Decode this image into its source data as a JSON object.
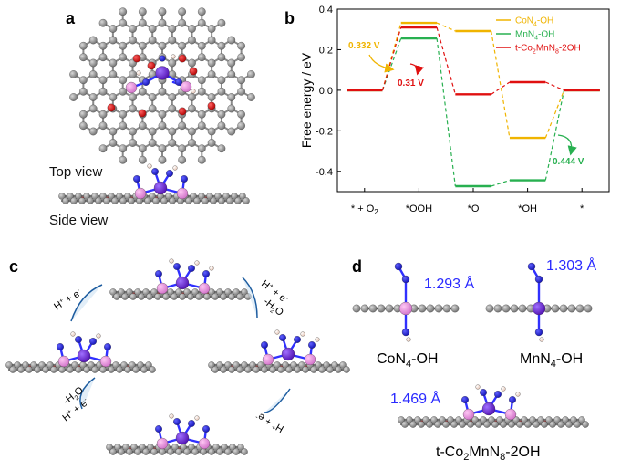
{
  "panels": {
    "a": {
      "label": "a",
      "top_view": "Top view",
      "side_view": "Side view"
    },
    "b": {
      "label": "b",
      "annotations": [
        {
          "text": "0.332 V",
          "color": "#f0b400"
        },
        {
          "text": "0.31 V",
          "color": "#e01010"
        },
        {
          "text": "0.444 V",
          "color": "#28b050"
        }
      ]
    },
    "c": {
      "label": "c",
      "steps": [
        {
          "h": "H",
          "hsup": "+",
          "plus": " + e",
          "esup": "-"
        },
        {
          "h": "H",
          "hsup": "+",
          "plus": " + e",
          "esup": "-",
          "water": "-H",
          "wsub": "2",
          "wo": "O"
        },
        {
          "h": "H",
          "hsup": "+",
          "plus": " + e",
          "esup": "-",
          "water": "-H",
          "wsub": "2",
          "wo": "O"
        },
        {
          "h": "H",
          "hsup": "+",
          "plus": " + e",
          "esup": "-"
        }
      ]
    },
    "d": {
      "label": "d",
      "structures": [
        {
          "bond": "1.293 Å",
          "name_main": "CoN",
          "name_sub": "4",
          "name_rest": "-OH"
        },
        {
          "bond": "1.303 Å",
          "name_main": "MnN",
          "name_sub": "4",
          "name_rest": "-OH"
        },
        {
          "bond": "1.469 Å",
          "name_main": "t-Co",
          "name_sub": "2",
          "name_mid": "MnN",
          "name_sub2": "8",
          "name_rest": "-2OH"
        }
      ]
    }
  },
  "chart_data": {
    "type": "line",
    "title": "",
    "xlabel": "",
    "ylabel": "Free energy / eV",
    "ylim": [
      -0.5,
      0.4
    ],
    "yticks": [
      -0.4,
      -0.2,
      0.0,
      0.2,
      0.4
    ],
    "ytick_labels": [
      "-0.4",
      "-0.2",
      "0.0",
      "0.2",
      "0.4"
    ],
    "categories": [
      {
        "main": "* + O",
        "sub": "2"
      },
      {
        "main": "*OOH",
        "sub": ""
      },
      {
        "main": "*O",
        "sub": ""
      },
      {
        "main": "*OH",
        "sub": ""
      },
      {
        "main": "*",
        "sub": ""
      }
    ],
    "legend_position": "top-right",
    "series": [
      {
        "name_main": "CoN",
        "name_sub": "4",
        "name_rest": "-OH",
        "color": "#f0b400",
        "values": [
          0.0,
          0.332,
          0.292,
          -0.235,
          0.0
        ]
      },
      {
        "name_main": "MnN",
        "name_sub": "4",
        "name_rest": "-OH",
        "color": "#28b050",
        "values": [
          0.0,
          0.256,
          -0.473,
          -0.444,
          0.0
        ]
      },
      {
        "name_main": "t-Co",
        "name_sub": "2",
        "name_mid": "MnN",
        "name_sub2": "8",
        "name_rest": "-2OH",
        "color": "#e01010",
        "values": [
          0.0,
          0.31,
          -0.02,
          0.04,
          0.0
        ]
      }
    ]
  }
}
